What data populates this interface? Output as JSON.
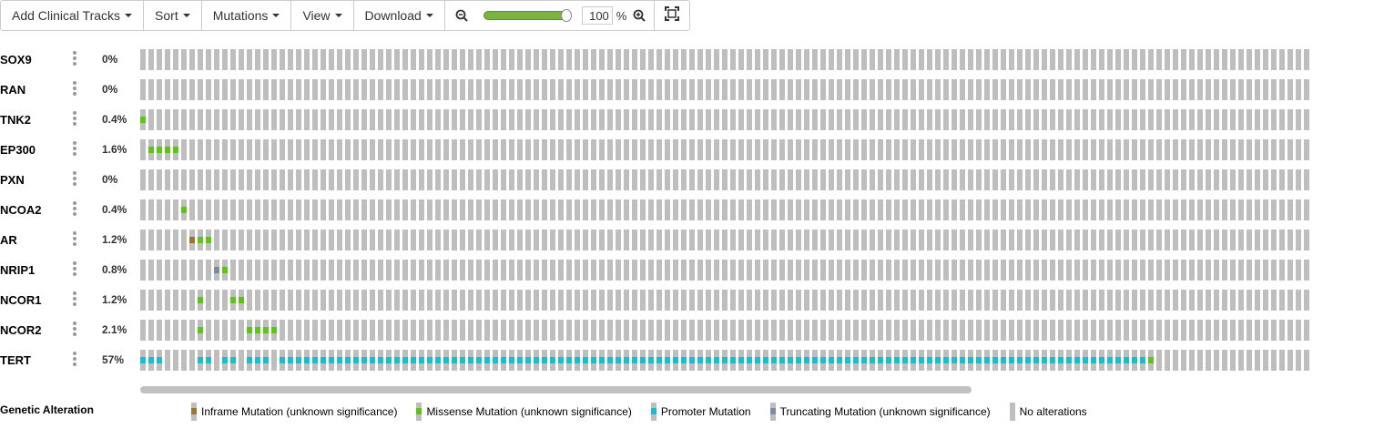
{
  "toolbar": {
    "add_clinical_tracks": "Add Clinical Tracks",
    "sort": "Sort",
    "mutations": "Mutations",
    "view": "View",
    "download": "Download",
    "zoom_value": "100",
    "zoom_unit": "%",
    "zoom_slider_level": 1.0
  },
  "colors": {
    "no_alteration": "#bebebe",
    "inframe": "#9a7533",
    "missense": "#5dc315",
    "promoter": "#17becf",
    "truncating": "#7d8ba0"
  },
  "sample_count": 143,
  "tracks": [
    {
      "gene": "SOX9",
      "percent": "0%",
      "alterations": []
    },
    {
      "gene": "RAN",
      "percent": "0%",
      "alterations": []
    },
    {
      "gene": "TNK2",
      "percent": "0.4%",
      "alterations": [
        [
          0,
          "missense"
        ]
      ]
    },
    {
      "gene": "EP300",
      "percent": "1.6%",
      "alterations": [
        [
          1,
          "missense"
        ],
        [
          2,
          "missense"
        ],
        [
          3,
          "missense"
        ],
        [
          4,
          "missense"
        ]
      ]
    },
    {
      "gene": "PXN",
      "percent": "0%",
      "alterations": []
    },
    {
      "gene": "NCOA2",
      "percent": "0.4%",
      "alterations": [
        [
          5,
          "missense"
        ]
      ]
    },
    {
      "gene": "AR",
      "percent": "1.2%",
      "alterations": [
        [
          6,
          "inframe"
        ],
        [
          7,
          "missense"
        ],
        [
          8,
          "missense"
        ]
      ]
    },
    {
      "gene": "NRIP1",
      "percent": "0.8%",
      "alterations": [
        [
          9,
          "truncating"
        ],
        [
          10,
          "missense"
        ]
      ]
    },
    {
      "gene": "NCOR1",
      "percent": "1.2%",
      "alterations": [
        [
          7,
          "missense"
        ],
        [
          11,
          "missense"
        ],
        [
          12,
          "missense"
        ]
      ]
    },
    {
      "gene": "NCOR2",
      "percent": "2.1%",
      "alterations": [
        [
          7,
          "missense"
        ],
        [
          13,
          "missense"
        ],
        [
          14,
          "missense"
        ],
        [
          15,
          "missense"
        ],
        [
          16,
          "missense"
        ]
      ]
    },
    {
      "gene": "TERT",
      "percent": "57%",
      "alterations": [
        [
          0,
          "promoter"
        ],
        [
          1,
          "promoter"
        ],
        [
          2,
          "promoter"
        ],
        [
          7,
          "promoter"
        ],
        [
          8,
          "promoter"
        ],
        [
          10,
          "promoter"
        ],
        [
          11,
          "promoter"
        ],
        [
          13,
          "promoter"
        ],
        [
          14,
          "promoter"
        ],
        [
          15,
          "promoter"
        ],
        [
          17,
          "promoter"
        ],
        [
          18,
          "promoter"
        ],
        [
          19,
          "promoter"
        ],
        [
          20,
          "promoter"
        ],
        [
          21,
          "promoter"
        ],
        [
          22,
          "promoter"
        ],
        [
          23,
          "promoter"
        ],
        [
          24,
          "promoter"
        ],
        [
          25,
          "promoter"
        ],
        [
          26,
          "promoter"
        ],
        [
          27,
          "promoter"
        ],
        [
          28,
          "promoter"
        ],
        [
          29,
          "promoter"
        ],
        [
          30,
          "promoter"
        ],
        [
          31,
          "promoter"
        ],
        [
          32,
          "promoter"
        ],
        [
          33,
          "promoter"
        ],
        [
          34,
          "promoter"
        ],
        [
          35,
          "promoter"
        ],
        [
          36,
          "promoter"
        ],
        [
          37,
          "promoter"
        ],
        [
          38,
          "promoter"
        ],
        [
          39,
          "promoter"
        ],
        [
          40,
          "promoter"
        ],
        [
          41,
          "promoter"
        ],
        [
          42,
          "promoter"
        ],
        [
          43,
          "promoter"
        ],
        [
          44,
          "promoter"
        ],
        [
          45,
          "promoter"
        ],
        [
          46,
          "promoter"
        ],
        [
          47,
          "promoter"
        ],
        [
          48,
          "promoter"
        ],
        [
          49,
          "promoter"
        ],
        [
          50,
          "promoter"
        ],
        [
          51,
          "promoter"
        ],
        [
          52,
          "promoter"
        ],
        [
          53,
          "promoter"
        ],
        [
          54,
          "promoter"
        ],
        [
          55,
          "promoter"
        ],
        [
          56,
          "promoter"
        ],
        [
          57,
          "promoter"
        ],
        [
          58,
          "promoter"
        ],
        [
          59,
          "promoter"
        ],
        [
          60,
          "promoter"
        ],
        [
          61,
          "promoter"
        ],
        [
          62,
          "promoter"
        ],
        [
          63,
          "promoter"
        ],
        [
          64,
          "promoter"
        ],
        [
          65,
          "promoter"
        ],
        [
          66,
          "promoter"
        ],
        [
          67,
          "promoter"
        ],
        [
          68,
          "promoter"
        ],
        [
          69,
          "promoter"
        ],
        [
          70,
          "promoter"
        ],
        [
          71,
          "promoter"
        ],
        [
          72,
          "promoter"
        ],
        [
          73,
          "promoter"
        ],
        [
          74,
          "promoter"
        ],
        [
          75,
          "promoter"
        ],
        [
          76,
          "promoter"
        ],
        [
          77,
          "promoter"
        ],
        [
          78,
          "promoter"
        ],
        [
          79,
          "promoter"
        ],
        [
          80,
          "promoter"
        ],
        [
          81,
          "promoter"
        ],
        [
          82,
          "promoter"
        ],
        [
          83,
          "promoter"
        ],
        [
          84,
          "promoter"
        ],
        [
          85,
          "promoter"
        ],
        [
          86,
          "promoter"
        ],
        [
          87,
          "promoter"
        ],
        [
          88,
          "promoter"
        ],
        [
          89,
          "promoter"
        ],
        [
          90,
          "promoter"
        ],
        [
          91,
          "promoter"
        ],
        [
          92,
          "promoter"
        ],
        [
          93,
          "promoter"
        ],
        [
          94,
          "promoter"
        ],
        [
          95,
          "promoter"
        ],
        [
          96,
          "promoter"
        ],
        [
          97,
          "promoter"
        ],
        [
          98,
          "promoter"
        ],
        [
          99,
          "promoter"
        ],
        [
          100,
          "promoter"
        ],
        [
          101,
          "promoter"
        ],
        [
          102,
          "promoter"
        ],
        [
          103,
          "promoter"
        ],
        [
          104,
          "promoter"
        ],
        [
          105,
          "promoter"
        ],
        [
          106,
          "promoter"
        ],
        [
          107,
          "promoter"
        ],
        [
          108,
          "promoter"
        ],
        [
          109,
          "promoter"
        ],
        [
          110,
          "promoter"
        ],
        [
          111,
          "promoter"
        ],
        [
          112,
          "promoter"
        ],
        [
          113,
          "promoter"
        ],
        [
          114,
          "promoter"
        ],
        [
          115,
          "promoter"
        ],
        [
          116,
          "promoter"
        ],
        [
          117,
          "promoter"
        ],
        [
          118,
          "promoter"
        ],
        [
          119,
          "promoter"
        ],
        [
          120,
          "promoter"
        ],
        [
          121,
          "promoter"
        ],
        [
          122,
          "promoter"
        ],
        [
          123,
          "missense"
        ]
      ]
    }
  ],
  "legend": {
    "title": "Genetic Alteration",
    "items": [
      {
        "label": "Inframe Mutation (unknown significance)",
        "type": "inframe"
      },
      {
        "label": "Missense Mutation (unknown significance)",
        "type": "missense"
      },
      {
        "label": "Promoter Mutation",
        "type": "promoter"
      },
      {
        "label": "Truncating Mutation (unknown significance)",
        "type": "truncating"
      },
      {
        "label": "No alterations",
        "type": "none"
      }
    ]
  }
}
